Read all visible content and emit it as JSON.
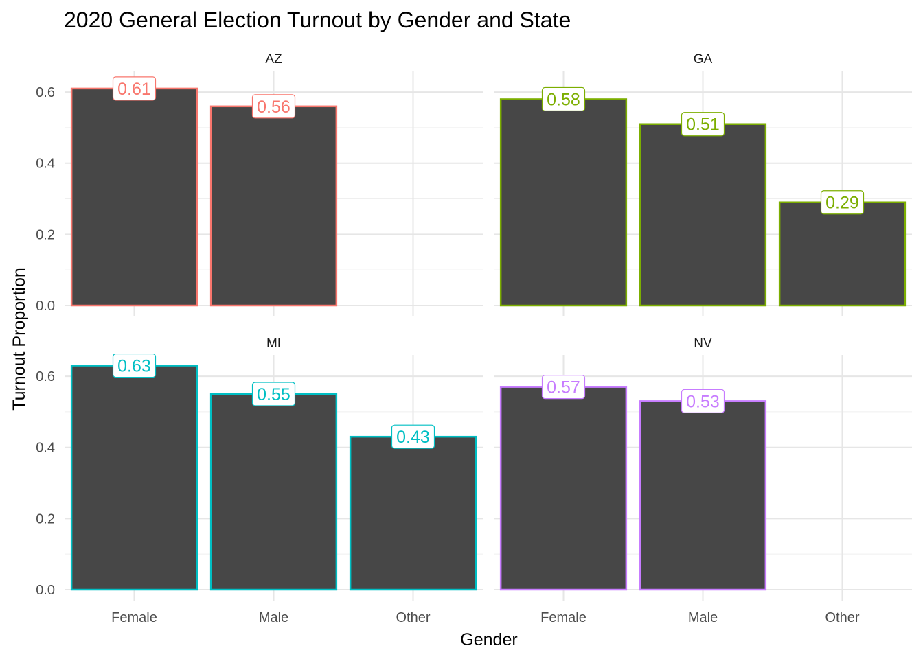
{
  "chart_data": {
    "type": "bar",
    "title": "2020 General Election Turnout by Gender and State",
    "xlabel": "Gender",
    "ylabel": "Turnout Proportion",
    "categories": [
      "Female",
      "Male",
      "Other"
    ],
    "ylim": [
      0,
      0.66
    ],
    "y_ticks": [
      "0.0",
      "0.2",
      "0.4",
      "0.6"
    ],
    "y_tick_values": [
      0,
      0.2,
      0.4,
      0.6
    ],
    "grid": true,
    "bar_fill": "#474747",
    "facets": [
      {
        "state": "AZ",
        "color": "#F8766D",
        "values": [
          0.61,
          0.56,
          null
        ],
        "labels": [
          "0.61",
          "0.56",
          ""
        ]
      },
      {
        "state": "GA",
        "color": "#7CAE00",
        "values": [
          0.58,
          0.51,
          0.29
        ],
        "labels": [
          "0.58",
          "0.51",
          "0.29"
        ]
      },
      {
        "state": "MI",
        "color": "#00BFC4",
        "values": [
          0.63,
          0.55,
          0.43
        ],
        "labels": [
          "0.63",
          "0.55",
          "0.43"
        ]
      },
      {
        "state": "NV",
        "color": "#C77CFF",
        "values": [
          0.57,
          0.53,
          null
        ],
        "labels": [
          "0.57",
          "0.53",
          ""
        ]
      }
    ]
  }
}
